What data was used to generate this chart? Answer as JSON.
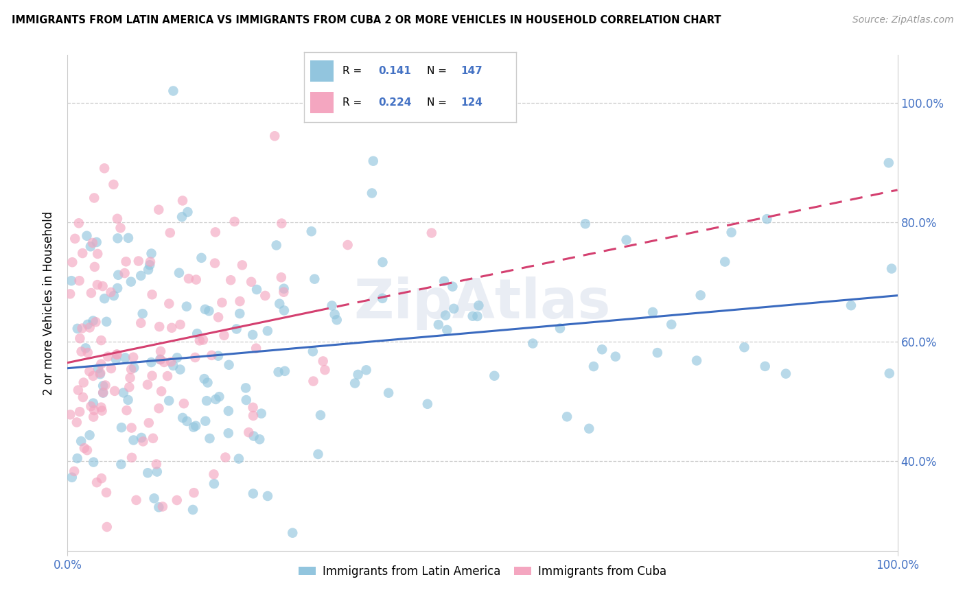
{
  "title": "IMMIGRANTS FROM LATIN AMERICA VS IMMIGRANTS FROM CUBA 2 OR MORE VEHICLES IN HOUSEHOLD CORRELATION CHART",
  "source": "Source: ZipAtlas.com",
  "ylabel": "2 or more Vehicles in Household",
  "legend_label_blue": "Immigrants from Latin America",
  "legend_label_pink": "Immigrants from Cuba",
  "R_blue": 0.141,
  "N_blue": 147,
  "R_pink": 0.224,
  "N_pink": 124,
  "color_blue": "#92c5de",
  "color_pink": "#f4a6c0",
  "line_blue": "#3a6abf",
  "line_pink": "#d44070",
  "xmin": 0.0,
  "xmax": 1.0,
  "ymin": 0.25,
  "ymax": 1.08,
  "y_ticks": [
    0.4,
    0.6,
    0.8,
    1.0
  ],
  "x_ticks": [
    0.0,
    1.0
  ],
  "seed_blue": 17,
  "seed_pink": 99
}
